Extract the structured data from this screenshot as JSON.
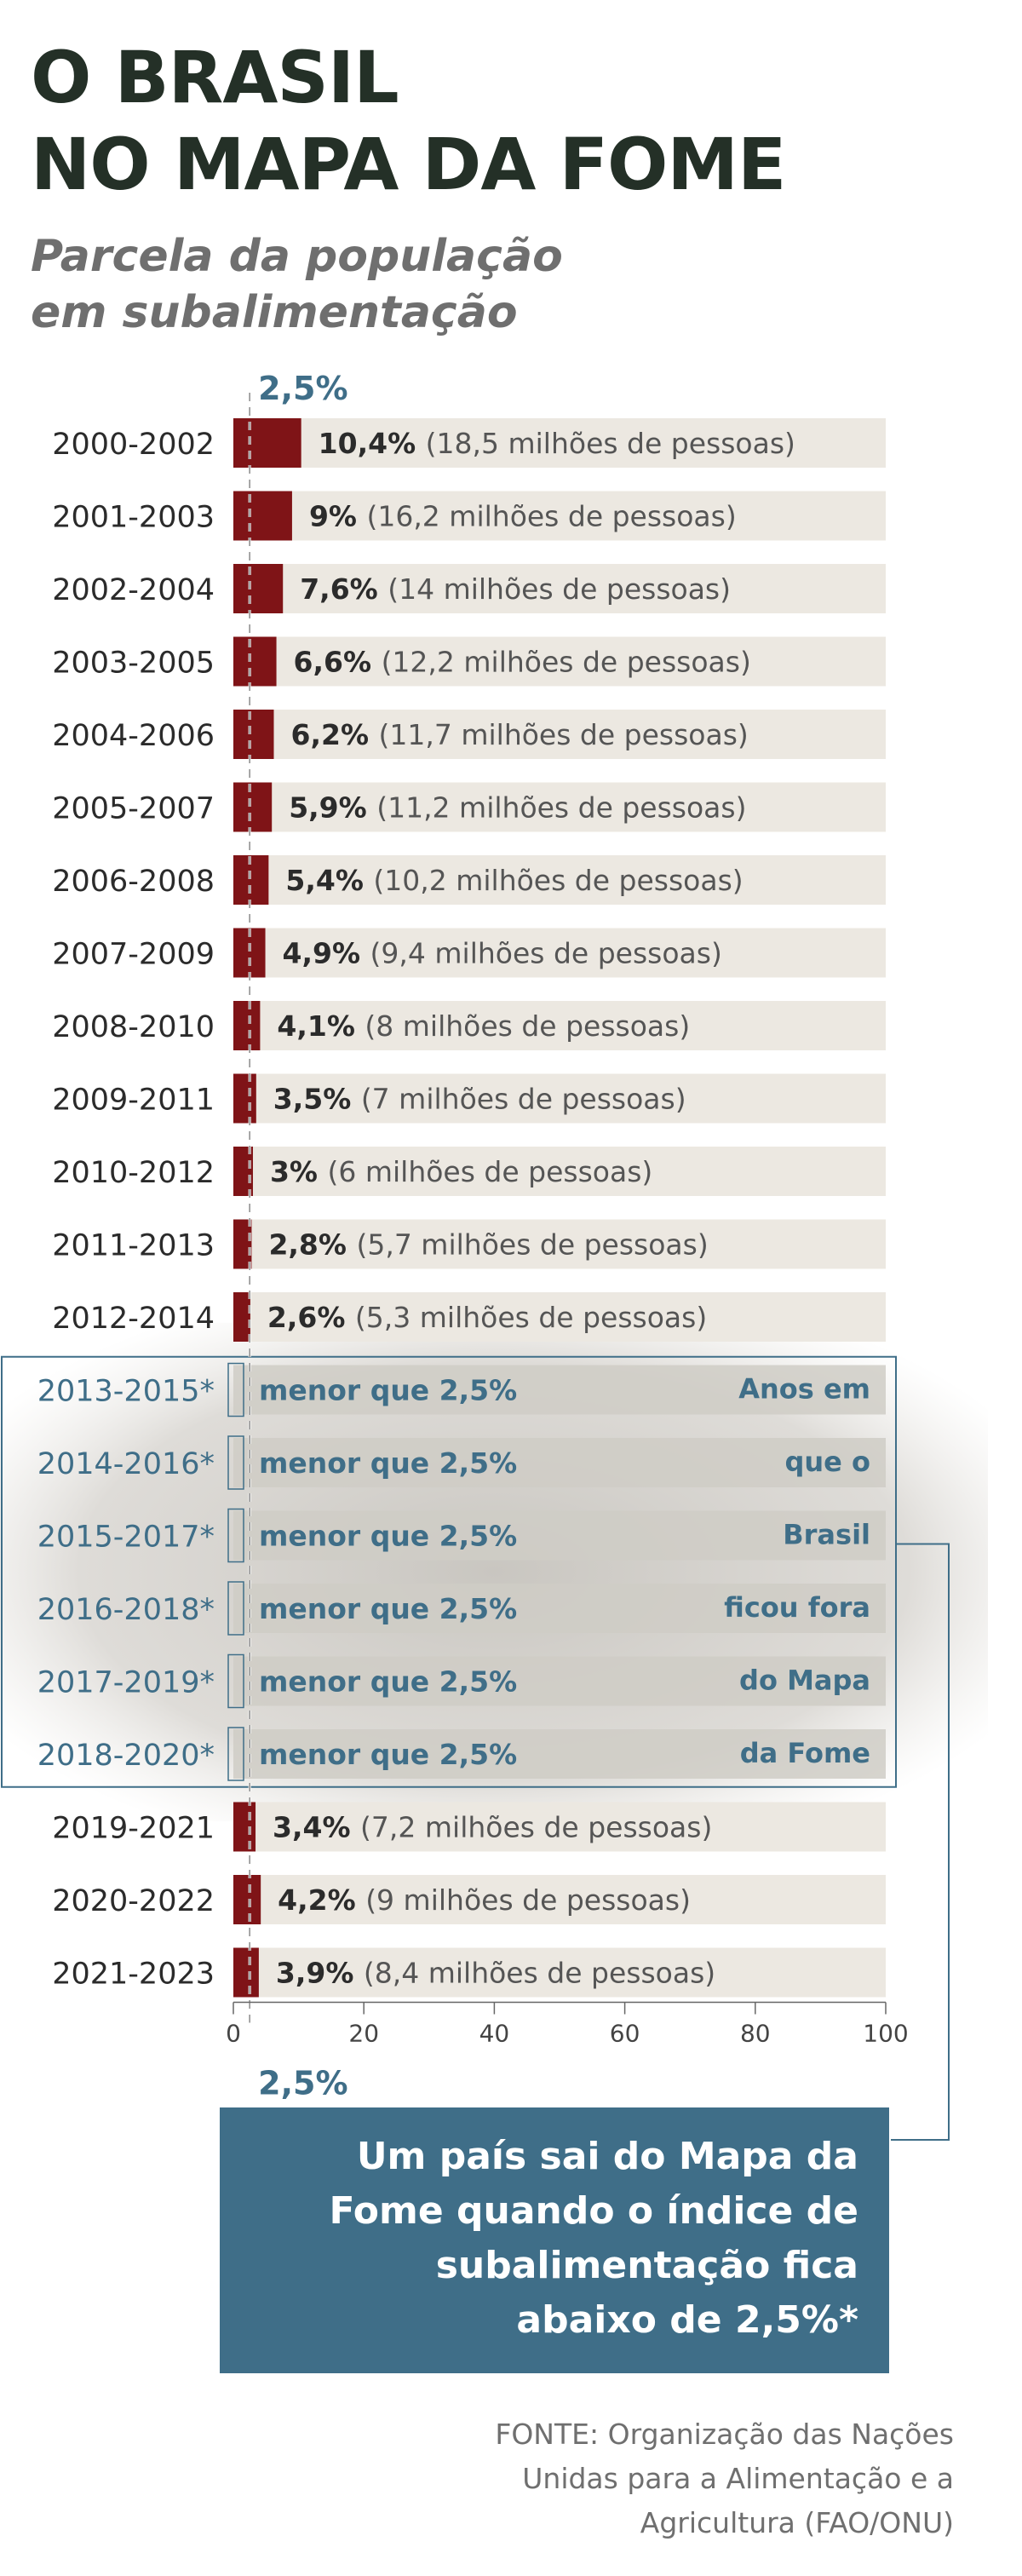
{
  "title": [
    "O BRASIL",
    "NO MAPA DA FOME"
  ],
  "subtitle": [
    "Parcela da população",
    "em subalimentação"
  ],
  "threshold_label": "2,5%",
  "colors": {
    "bar": "#7f1417",
    "track": "#ece8e1",
    "out_text": "#3f6e88",
    "out_bg": "#cfccc6",
    "box": "#3f6e88",
    "title": "#243027",
    "label": "#2b2b2b"
  },
  "chart_data": {
    "type": "bar",
    "orientation": "horizontal",
    "title": "Parcela da população em subalimentação",
    "xlim": [
      0,
      100
    ],
    "xticks": [
      "0",
      "20",
      "40",
      "60",
      "80",
      "100"
    ],
    "threshold": 2.5,
    "categories": [
      "2000-2002",
      "2001-2003",
      "2002-2004",
      "2003-2005",
      "2004-2006",
      "2005-2007",
      "2006-2008",
      "2007-2009",
      "2008-2010",
      "2009-2011",
      "2010-2012",
      "2011-2013",
      "2012-2014",
      "2013-2015*",
      "2014-2016*",
      "2015-2017*",
      "2016-2018*",
      "2017-2019*",
      "2018-2020*",
      "2019-2021",
      "2020-2022",
      "2021-2023"
    ],
    "values": [
      10.4,
      9,
      7.6,
      6.6,
      6.2,
      5.9,
      5.4,
      4.9,
      4.1,
      3.5,
      3,
      2.8,
      2.6,
      null,
      null,
      null,
      null,
      null,
      null,
      3.4,
      4.2,
      3.9
    ],
    "value_labels": [
      "10,4%",
      "9%",
      "7,6%",
      "6,6%",
      "6,2%",
      "5,9%",
      "5,4%",
      "4,9%",
      "4,1%",
      "3,5%",
      "3%",
      "2,8%",
      "2,6%",
      "menor que 2,5%",
      "menor que 2,5%",
      "menor que 2,5%",
      "menor que 2,5%",
      "menor que 2,5%",
      "menor que 2,5%",
      "3,4%",
      "4,2%",
      "3,9%"
    ],
    "people_labels": [
      "(18,5 milhões de pessoas)",
      "(16,2 milhões de pessoas)",
      "(14 milhões de pessoas)",
      "(12,2 milhões de pessoas)",
      "(11,7 milhões de pessoas)",
      "(11,2 milhões de pessoas)",
      "(10,2 milhões de pessoas)",
      "(9,4 milhões de pessoas)",
      "(8 milhões de pessoas)",
      "(7 milhões de pessoas)",
      "(6 milhões de pessoas)",
      "(5,7 milhões de pessoas)",
      "(5,3 milhões de pessoas)",
      "",
      "",
      "",
      "",
      "",
      "",
      "(7,2 milhões de pessoas)",
      "(9 milhões de pessoas)",
      "(8,4 milhões de pessoas)"
    ],
    "out_of_map_annotation": [
      "Anos em",
      "que o",
      "Brasil",
      "ficou fora",
      "do Mapa",
      "da Fome"
    ]
  },
  "note": [
    "Um país sai do Mapa da",
    "Fome quando o índice de",
    "subalimentação fica",
    "abaixo de 2,5%*"
  ],
  "source": [
    "FONTE: Organização das Nações",
    "Unidas para a Alimentação e a",
    "Agricultura (FAO/ONU)"
  ]
}
